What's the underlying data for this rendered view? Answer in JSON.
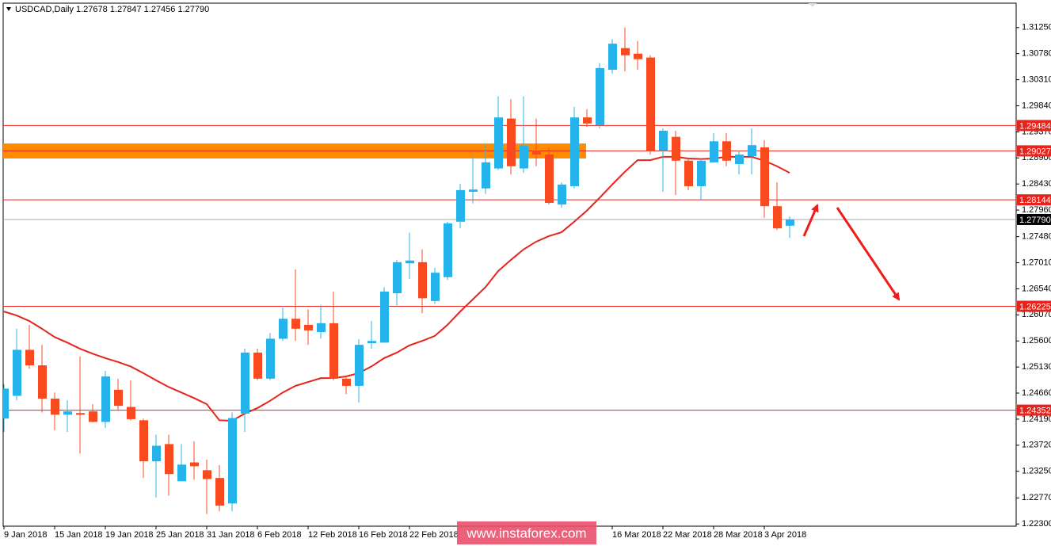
{
  "chart_data": {
    "type": "candlestick",
    "title": "USDCAD,Daily  1.27678 1.27847 1.27456 1.27790",
    "watermark": "www.instaforex.com",
    "categories": [
      "9 Jan 2018",
      null,
      null,
      null,
      "15 Jan 2018",
      null,
      null,
      null,
      "19 Jan 2018",
      null,
      null,
      null,
      "25 Jan 2018",
      null,
      null,
      null,
      "31 Jan 2018",
      null,
      null,
      null,
      "6 Feb 2018",
      null,
      null,
      null,
      "12 Feb 2018",
      null,
      null,
      null,
      "16 Feb 2018",
      null,
      null,
      null,
      "22 Feb 2018",
      null,
      null,
      null,
      null,
      null,
      null,
      null,
      null,
      null,
      null,
      null,
      null,
      null,
      null,
      null,
      "16 Mar 2018",
      null,
      null,
      null,
      "22 Mar 2018",
      null,
      null,
      null,
      "28 Mar 2018",
      null,
      null,
      null,
      "3 Apr 2018",
      null,
      null
    ],
    "open": [
      1.242,
      1.2461,
      1.2544,
      1.2516,
      1.2456,
      1.2427,
      1.243,
      1.2433,
      1.2414,
      1.2472,
      1.2441,
      1.2417,
      1.2343,
      1.2374,
      1.2307,
      1.2341,
      1.2327,
      1.2313,
      1.2267,
      1.2429,
      1.2539,
      1.2492,
      1.2564,
      1.26,
      1.2589,
      1.2576,
      1.2592,
      1.2492,
      1.2479,
      1.2556,
      1.2557,
      1.2646,
      1.27,
      1.2702,
      1.2632,
      1.2675,
      1.2775,
      1.2829,
      1.2835,
      1.2871,
      1.2961,
      1.2871,
      1.2903,
      1.2896,
      1.2806,
      1.2839,
      1.2963,
      1.2949,
      1.3049,
      1.3088,
      1.3078,
      1.3071,
      1.2903,
      1.2928,
      1.2885,
      1.2839,
      1.2882,
      1.292,
      1.2879,
      1.2893,
      1.2909,
      1.2803,
      1.27678
    ],
    "high": [
      1.2482,
      1.2582,
      1.2589,
      1.2553,
      1.2467,
      1.2453,
      1.2532,
      1.2446,
      1.2506,
      1.2492,
      1.2489,
      1.242,
      1.2391,
      1.2391,
      1.2374,
      1.2379,
      1.2346,
      1.2336,
      1.2431,
      1.2546,
      1.2546,
      1.2574,
      1.262,
      1.2689,
      1.2617,
      1.2625,
      1.2649,
      1.2496,
      1.2563,
      1.2596,
      1.2657,
      1.2706,
      1.2755,
      1.2725,
      1.2692,
      1.2775,
      1.2843,
      1.2892,
      1.2915,
      1.3001,
      1.2996,
      1.3001,
      1.2961,
      1.2908,
      1.2846,
      1.2982,
      1.2978,
      1.3061,
      1.3104,
      1.3125,
      1.3101,
      1.3075,
      1.2943,
      1.2939,
      1.2889,
      1.2889,
      1.2935,
      1.2935,
      1.2903,
      1.2943,
      1.2922,
      1.2846,
      1.27847
    ],
    "low": [
      1.2396,
      1.2453,
      1.251,
      1.2431,
      1.2399,
      1.2396,
      1.2357,
      1.2413,
      1.2403,
      1.2434,
      1.2417,
      1.2313,
      1.2278,
      1.2281,
      1.2307,
      1.231,
      1.2248,
      1.2253,
      1.2253,
      1.2396,
      1.2489,
      1.2489,
      1.256,
      1.256,
      1.2553,
      1.2564,
      1.2489,
      1.2464,
      1.2449,
      1.2546,
      1.2557,
      1.2622,
      1.2672,
      1.261,
      1.2627,
      1.267,
      1.2763,
      1.2808,
      1.2825,
      1.2868,
      1.286,
      1.2863,
      1.2875,
      1.2806,
      1.28,
      1.2835,
      1.2946,
      1.2943,
      1.3042,
      1.3046,
      1.3049,
      1.2896,
      1.2829,
      1.2823,
      1.2832,
      1.2815,
      1.2882,
      1.2875,
      1.286,
      1.286,
      1.2782,
      1.276,
      1.27456
    ],
    "close": [
      1.2474,
      1.2544,
      1.2516,
      1.2456,
      1.2427,
      1.2433,
      1.2427,
      1.2414,
      1.2496,
      1.2443,
      1.2419,
      1.2343,
      1.2371,
      1.232,
      1.2337,
      1.2334,
      1.2311,
      1.2263,
      1.2421,
      1.2539,
      1.2492,
      1.2564,
      1.26,
      1.2582,
      1.2579,
      1.2592,
      1.2492,
      1.2479,
      1.2553,
      1.256,
      1.2649,
      1.2702,
      1.2705,
      1.2637,
      1.2683,
      1.2772,
      1.2832,
      1.2833,
      1.2882,
      1.2963,
      1.2875,
      1.2912,
      1.2896,
      1.2809,
      1.2842,
      1.2963,
      1.2952,
      1.3052,
      1.3096,
      1.3075,
      1.3068,
      1.2903,
      1.2939,
      1.2885,
      1.2839,
      1.2885,
      1.292,
      1.2885,
      1.2896,
      1.2913,
      1.2803,
      1.2763,
      1.2779
    ],
    "up_color": "#25b3ec",
    "down_color": "#f94a1f",
    "ma": {
      "color": "#e8231b",
      "values": [
        1.2613,
        1.2606,
        1.2596,
        1.2582,
        1.2567,
        1.2557,
        1.2546,
        1.2537,
        1.2529,
        1.2522,
        1.2514,
        1.2502,
        1.2489,
        1.2477,
        1.2467,
        1.2457,
        1.2446,
        1.2417,
        1.2416,
        1.2429,
        1.2439,
        1.2452,
        1.2467,
        1.2479,
        1.2486,
        1.2493,
        1.2493,
        1.2496,
        1.2502,
        1.2514,
        1.2529,
        1.2539,
        1.2552,
        1.256,
        1.2569,
        1.2589,
        1.2613,
        1.2635,
        1.2657,
        1.2686,
        1.2706,
        1.2725,
        1.2739,
        1.2749,
        1.2756,
        1.2775,
        1.2795,
        1.2818,
        1.2842,
        1.2865,
        1.2886,
        1.2886,
        1.2892,
        1.2892,
        1.2889,
        1.2888,
        1.2889,
        1.2892,
        1.2892,
        1.2892,
        1.2885,
        1.2875,
        1.2863
      ]
    },
    "zone": {
      "range": [
        1.2889,
        1.2916
      ],
      "color": "#ff8c00"
    },
    "levels": [
      {
        "value": 1.29484,
        "color": "#e8231b"
      },
      {
        "value": 1.29027,
        "color": "#e8231b"
      },
      {
        "value": 1.28144,
        "color": "#e8231b"
      },
      {
        "value": {
          "value": 1.2779,
          "label": "1.27790"
        },
        "color": "#aaaaaa",
        "box": "#000000"
      },
      {
        "value": 1.26225,
        "color": "#e8231b"
      },
      {
        "value": 1.24352,
        "color": "#e8231b"
      }
    ],
    "ylim": [
      1.2226,
      1.3169
    ],
    "yticks": [
      {
        "value": 1.3125,
        "label": "1.31250"
      },
      {
        "value": 1.3078,
        "label": "1.30780"
      },
      {
        "value": 1.3031,
        "label": "1.30310"
      },
      {
        "value": 1.2984,
        "label": "1.29840"
      },
      {
        "value": 1.2937,
        "label": "1.29370"
      },
      {
        "value": 1.289,
        "label": "1.28900"
      },
      {
        "value": 1.2843,
        "label": "1.28430"
      },
      {
        "value": 1.2796,
        "label": "1.27960"
      },
      {
        "value": 1.2748,
        "label": "1.27480"
      },
      {
        "value": 1.2701,
        "label": "1.27010"
      },
      {
        "value": 1.2654,
        "label": "1.26540"
      },
      {
        "value": 1.2607,
        "label": "1.26070"
      },
      {
        "value": 1.256,
        "label": "1.25600"
      },
      {
        "value": 1.2513,
        "label": "1.25130"
      },
      {
        "value": 1.2466,
        "label": "1.24660"
      },
      {
        "value": 1.2419,
        "label": "1.24190"
      },
      {
        "value": 1.2372,
        "label": "1.23720"
      },
      {
        "value": 1.2325,
        "label": "1.23250"
      },
      {
        "value": 1.2277,
        "label": "1.22770"
      },
      {
        "value": 1.223,
        "label": "1.22300"
      }
    ]
  }
}
